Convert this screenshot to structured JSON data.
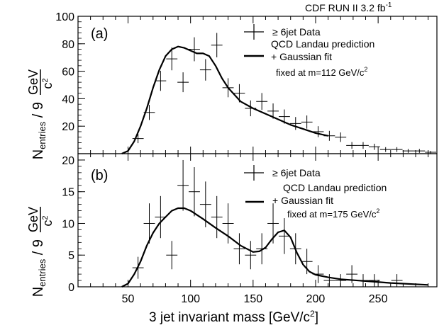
{
  "header": {
    "experiment": "CDF RUN II  3.2 fb",
    "lumi_sup": "-1"
  },
  "xaxis": {
    "title_main": "3 jet invariant mass [GeV/c",
    "title_sup": "2",
    "title_end": "]",
    "ticks": [
      50,
      100,
      150,
      200,
      250
    ],
    "tick_labels": [
      "50",
      "100",
      "150",
      "200",
      "250"
    ]
  },
  "yaxis_label": {
    "n": "N",
    "sub": "entries",
    "slash": " / 9 ",
    "num": "GeV",
    "den": "c",
    "den_sup": "2"
  },
  "chart_data": [
    {
      "type": "scatter",
      "panel": "a",
      "panel_label": "(a)",
      "xlim": [
        10,
        297
      ],
      "ylim": [
        0,
        100
      ],
      "yticks": [
        20,
        40,
        60,
        80,
        100
      ],
      "ytick_labels": [
        "20",
        "40",
        "60",
        "80",
        "100"
      ],
      "legend": {
        "data_label": "≥ 6jet Data",
        "fit_label_1": "QCD Landau prediction",
        "fit_label_2": "+ Gaussian fit",
        "fit_label_3": "fixed at m=112 GeV/c",
        "fit_label_3_sup": "2"
      },
      "series": [
        {
          "name": "≥ 6jet Data",
          "kind": "points",
          "x": [
            58,
            67,
            76,
            85,
            94,
            103,
            112,
            121,
            130,
            139,
            148,
            157,
            166,
            175,
            184,
            193,
            202,
            211,
            220,
            229,
            238,
            247,
            256,
            265,
            274,
            283,
            292
          ],
          "y": [
            11,
            30,
            53,
            69,
            52,
            76,
            61,
            79,
            48,
            44,
            33,
            38,
            31,
            27,
            22,
            23,
            16,
            13,
            12,
            6,
            6,
            5,
            3,
            3,
            2,
            2,
            1
          ],
          "xerr": 4.5
        },
        {
          "name": "QCD Landau prediction + Gaussian fit",
          "kind": "line",
          "x": [
            45,
            50,
            55,
            60,
            65,
            70,
            75,
            80,
            85,
            90,
            95,
            100,
            105,
            110,
            115,
            120,
            125,
            130,
            140,
            150,
            160,
            170,
            180,
            190,
            200,
            210
          ],
          "y": [
            0,
            2,
            9,
            20,
            33,
            48,
            61,
            71,
            76,
            78,
            77,
            75,
            73,
            73,
            71,
            64,
            55,
            48,
            38,
            33,
            29,
            25,
            21,
            18,
            15,
            13
          ]
        }
      ]
    },
    {
      "type": "scatter",
      "panel": "b",
      "panel_label": "(b)",
      "xlim": [
        10,
        297
      ],
      "ylim": [
        0,
        21
      ],
      "yticks": [
        0,
        5,
        10,
        15,
        20
      ],
      "ytick_labels": [
        "0",
        "5",
        "10",
        "15",
        "20"
      ],
      "legend": {
        "data_label": "≥ 6jet Data",
        "fit_label_1": "QCD Landau prediction",
        "fit_label_2": "+ Gaussian fit",
        "fit_label_3": "fixed at m=175 GeV/c",
        "fit_label_3_sup": "2"
      },
      "series": [
        {
          "name": "≥ 6jet Data",
          "kind": "points",
          "x": [
            58,
            67,
            76,
            85,
            94,
            103,
            112,
            121,
            130,
            139,
            148,
            157,
            166,
            175,
            184,
            193,
            202,
            211,
            220,
            229,
            238,
            247,
            256,
            265,
            274,
            283
          ],
          "y": [
            3,
            10,
            11,
            5,
            16,
            15,
            13,
            11,
            10,
            6,
            5,
            6,
            10,
            8,
            6,
            4,
            2,
            1,
            1,
            2,
            1,
            1,
            0,
            1,
            0,
            0
          ],
          "xerr": 4.5
        },
        {
          "name": "QCD Landau prediction + Gaussian fit",
          "kind": "line",
          "x": [
            45,
            50,
            55,
            60,
            65,
            70,
            75,
            80,
            85,
            90,
            95,
            100,
            110,
            120,
            130,
            140,
            150,
            155,
            160,
            165,
            170,
            175,
            180,
            185,
            190,
            195,
            200,
            210,
            220,
            240,
            260,
            290
          ],
          "y": [
            0,
            0.5,
            2,
            4,
            6.5,
            8.5,
            10,
            11,
            12,
            12.4,
            12.4,
            12,
            10.7,
            9.3,
            8,
            6.5,
            5.5,
            5.6,
            6.2,
            7.5,
            8.6,
            8.9,
            7.8,
            5.4,
            3.5,
            2.4,
            1.9,
            1.5,
            1.2,
            0.9,
            0.6,
            0.3
          ]
        }
      ]
    }
  ]
}
